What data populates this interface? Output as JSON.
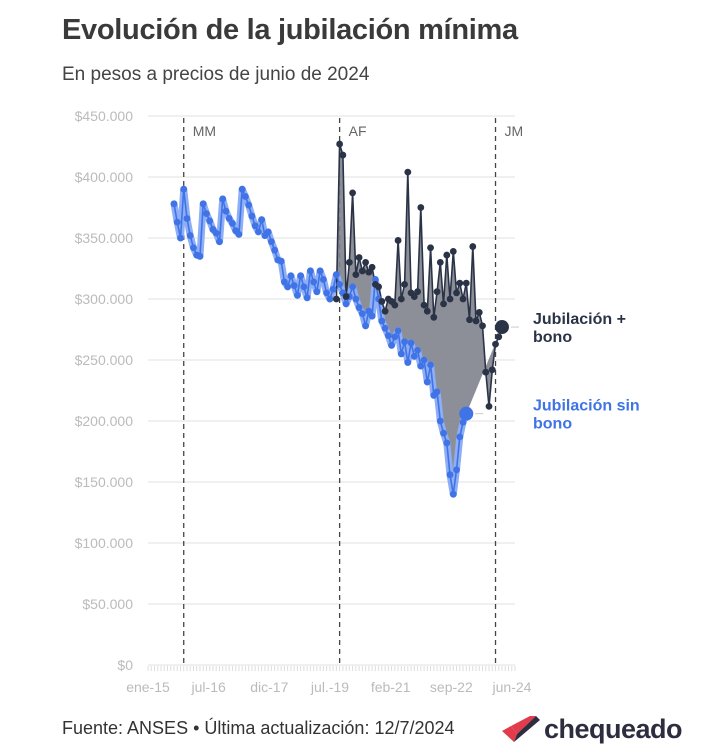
{
  "header": {
    "title": "Evolución de la jubilación mínima",
    "subtitle": "En pesos a precios de junio de 2024"
  },
  "footer": {
    "source": "Fuente: ANSES • Última actualización: 12/7/2024",
    "logo_text": "chequeado",
    "logo_icon": "chequeado-check-logo-icon"
  },
  "colors": {
    "con_bono": "#2b3347",
    "con_bono_band": "#7f838c",
    "sin_bono": "#3f73e6",
    "sin_bono_band": "#8eaef5",
    "grid": "#e8e8e8",
    "axis_text": "#bbbbbb"
  },
  "chart_data": {
    "type": "line",
    "title": "Evolución de la jubilación mínima",
    "subtitle": "En pesos a precios de junio de 2024",
    "x_tick_labels": [
      "ene-15",
      "jul-16",
      "dic-17",
      "jul.-19",
      "feb-21",
      "sep-22",
      "jun-24"
    ],
    "y_tick_labels": [
      "$0",
      "$50.000",
      "$100.000",
      "$150.000",
      "$200.000",
      "$250.000",
      "$300.000",
      "$350.000",
      "$400.000",
      "$450.000"
    ],
    "ylim": [
      0,
      450000
    ],
    "x_start": "2015-01",
    "x_end": "2024-06",
    "grid": "horizontal",
    "annotations": [
      {
        "label": "MM",
        "date": "2015-12"
      },
      {
        "label": "AF",
        "date": "2019-12"
      },
      {
        "label": "JM",
        "date": "2023-12"
      }
    ],
    "series": [
      {
        "name": "Jubilación + bono",
        "start": "2019-11",
        "values": [
          300000,
          427000,
          418000,
          302000,
          330000,
          387000,
          320000,
          334000,
          323000,
          330000,
          322000,
          326000,
          312000,
          310000,
          298000,
          290000,
          300000,
          298000,
          295000,
          348000,
          300000,
          312000,
          404000,
          305000,
          302000,
          306000,
          375000,
          295000,
          290000,
          342000,
          285000,
          306000,
          330000,
          296000,
          336000,
          300000,
          339000,
          305000,
          313000,
          300000,
          313000,
          283000,
          343000,
          282000,
          289000,
          278000,
          240000,
          212000,
          242000,
          263000,
          269000,
          277000
        ],
        "end_label_line1": "Jubilación +",
        "end_label_line2": "bono"
      },
      {
        "name": "Jubilación sin bono",
        "start": "2015-09",
        "values": [
          378000,
          363000,
          350000,
          390000,
          366000,
          352000,
          342000,
          336000,
          335000,
          378000,
          370000,
          364000,
          357000,
          354000,
          347000,
          382000,
          372000,
          366000,
          362000,
          356000,
          353000,
          390000,
          384000,
          377000,
          368000,
          360000,
          355000,
          365000,
          352000,
          355000,
          347000,
          340000,
          332000,
          331000,
          314000,
          310000,
          319000,
          311000,
          303000,
          319000,
          310000,
          301000,
          323000,
          314000,
          306000,
          323000,
          316000,
          305000,
          300000,
          308000,
          320000,
          312000,
          305000,
          296000,
          302000,
          310000,
          300000,
          293000,
          288000,
          278000,
          290000,
          286000,
          316000,
          300000,
          282000,
          276000,
          270000,
          262000,
          269000,
          274000,
          255000,
          265000,
          248000,
          264000,
          253000,
          258000,
          245000,
          250000,
          232000,
          246000,
          221000,
          224000,
          200000,
          190000,
          182000,
          156000,
          140000,
          160000,
          187000,
          199000,
          206000
        ],
        "end_label_line1": "Jubilación sin",
        "end_label_line2": "bono"
      }
    ]
  }
}
